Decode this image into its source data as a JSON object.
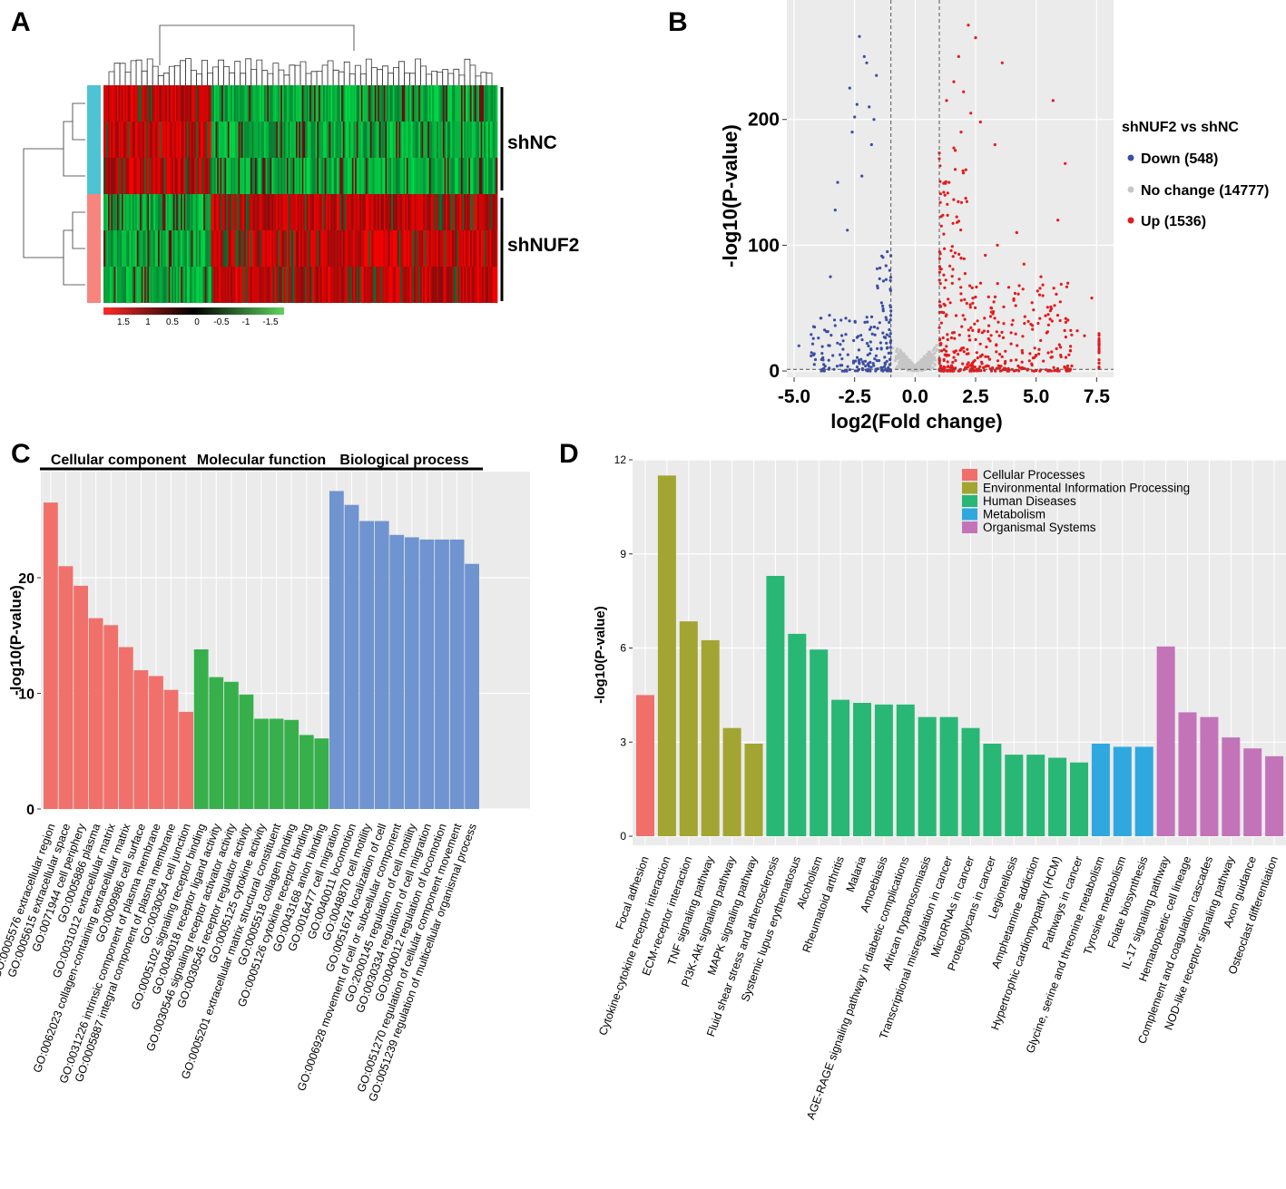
{
  "panels": {
    "a": "A",
    "b": "B",
    "c": "C",
    "d": "D"
  },
  "colors": {
    "down": "#3a4ea4",
    "nochange": "#c6c6c6",
    "up": "#e41a1c",
    "cc": "#f0716b",
    "mf": "#37b04b",
    "bp": "#6f94cf",
    "kegg": [
      "#f06f6a",
      "#a3a532",
      "#29b776",
      "#2fa8df",
      "#c374b9"
    ],
    "heat_pos": "#ff2a2a",
    "heat_neg": "#33cc33",
    "heat_mid": "#000000",
    "shnc_bar": "#4ec3d3",
    "shnuf2_bar": "#f7857e"
  },
  "chart_data": [
    {
      "panel": "A",
      "type": "heatmap",
      "row_groups": [
        "shNC",
        "shNUF2"
      ],
      "colorbar_ticks": [
        "1.5",
        "1",
        "0.5",
        "0",
        "-0.5",
        "-1",
        "-1.5"
      ],
      "rows": 6
    },
    {
      "panel": "B",
      "type": "scatter",
      "title": "",
      "xlabel": "log2(Fold change)",
      "ylabel": "-log10(P-value)",
      "xlim": [
        -5.3,
        8.2
      ],
      "ylim": [
        -5,
        295
      ],
      "xticks": [
        -5.0,
        -2.5,
        0.0,
        2.5,
        5.0,
        7.5
      ],
      "xtick_labels": [
        "-5.0",
        "-2.5",
        "0.0",
        "2.5",
        "5.0",
        "7.5"
      ],
      "yticks": [
        0,
        100,
        200
      ],
      "vlines": [
        -1,
        1
      ],
      "hline": 1.3,
      "legend_title": "shNUF2 vs shNC",
      "legend": [
        "Down (548)",
        "No change (14777)",
        "Up (1536)"
      ],
      "series": [
        {
          "name": "Down",
          "count": 548
        },
        {
          "name": "No change",
          "count": 14777
        },
        {
          "name": "Up",
          "count": 1536
        }
      ],
      "outliers_down": [
        [
          -2.3,
          266
        ],
        [
          -2.1,
          250
        ],
        [
          -2.0,
          245
        ],
        [
          -2.7,
          225
        ],
        [
          -2.4,
          212
        ],
        [
          -1.9,
          210
        ],
        [
          -2.5,
          202
        ],
        [
          -1.7,
          200
        ],
        [
          -1.6,
          235
        ],
        [
          -3.2,
          150
        ],
        [
          -2.2,
          155
        ],
        [
          -3.3,
          128
        ],
        [
          -2.8,
          112
        ],
        [
          -3.5,
          75
        ],
        [
          -3.9,
          42
        ],
        [
          -4.8,
          20
        ],
        [
          -4.3,
          12
        ],
        [
          -2.6,
          190
        ],
        [
          -1.8,
          180
        ]
      ],
      "outliers_up": [
        [
          2.2,
          275
        ],
        [
          2.5,
          265
        ],
        [
          1.8,
          250
        ],
        [
          3.6,
          245
        ],
        [
          1.6,
          230
        ],
        [
          2.0,
          222
        ],
        [
          1.3,
          215
        ],
        [
          5.7,
          215
        ],
        [
          2.3,
          205
        ],
        [
          2.7,
          198
        ],
        [
          1.9,
          190
        ],
        [
          3.3,
          180
        ],
        [
          6.2,
          165
        ],
        [
          2.1,
          160
        ],
        [
          1.4,
          150
        ],
        [
          5.9,
          120
        ],
        [
          4.2,
          110
        ],
        [
          3.4,
          100
        ],
        [
          2.9,
          92
        ],
        [
          4.5,
          85
        ],
        [
          5.2,
          75
        ],
        [
          6.0,
          55
        ],
        [
          7.3,
          58
        ],
        [
          6.7,
          32
        ],
        [
          7.0,
          28
        ],
        [
          5.5,
          45
        ]
      ]
    },
    {
      "panel": "C",
      "type": "bar",
      "ylabel": "-log10(P-value)",
      "ylim": [
        0,
        28
      ],
      "yticks": [
        0,
        10,
        20
      ],
      "groups": [
        {
          "name": "Cellular component",
          "color_key": "cc",
          "categories": [
            "GO:0005576 extracellular region",
            "GO:0005615 extracellular space",
            "GO:0071944 cell periphery",
            "GO:0005886 plasma",
            "GO:0031012 extracellular matrix",
            "GO:0062023 collagen-containing extracellular matrix",
            "GO:0009986 cell surface",
            "GO:0031226 intrinsic component of plasma membrane",
            "GO:0005887 integral component of plasma membrane",
            "GO:0030054 cell junction"
          ],
          "values": [
            26.5,
            21.0,
            19.3,
            16.5,
            15.9,
            14.0,
            12.0,
            11.5,
            10.3,
            8.4
          ]
        },
        {
          "name": "Molecular function",
          "color_key": "mf",
          "categories": [
            "GO:0005102 signaling receptor binding",
            "GO:0048018 receptor ligand activity",
            "GO:0030546 signaling receptor activator activity",
            "GO:0030545 receptor regulator activity",
            "GO:0005125 cytokine activity",
            "GO:0005201 extracellular matrix structural constituent",
            "GO:0005518 collagen binding",
            "GO:0005126 cytokine receptor binding",
            "GO:0043168 anion binding"
          ],
          "values": [
            13.8,
            11.4,
            11.0,
            9.9,
            7.8,
            7.8,
            7.7,
            6.4,
            6.1
          ]
        },
        {
          "name": "Biological process",
          "color_key": "bp",
          "categories": [
            "GO:0016477 cell migration",
            "GO:0040011 locomotion",
            "GO:0048870 cell motility",
            "GO:0051674 localization of cell",
            "GO:0006928 movement of cell or subcellular component",
            "GO:2000145 regulation of cell motility",
            "GO:0030334 regulation of cell migration",
            "GO:0040012 regulation of locomotion",
            "GO:0051270 regulation of cellular component movement",
            "GO:0051239 regulation of multicellular organismal process"
          ],
          "values": [
            27.5,
            26.3,
            24.9,
            24.9,
            23.7,
            23.5,
            23.3,
            23.3,
            23.3,
            21.2
          ]
        }
      ]
    },
    {
      "panel": "D",
      "type": "bar",
      "ylabel": "-log10(P-value)",
      "ylim": [
        0,
        12
      ],
      "yticks": [
        0,
        3,
        6,
        9,
        12
      ],
      "legend": [
        "Cellular Processes",
        "Environmental Information Processing",
        "Human Diseases",
        "Metabolism",
        "Organismal Systems"
      ],
      "categories": [
        "Focal adhesion",
        "Cytokine-cytokine receptor interaction",
        "ECM-receptor interaction",
        "TNF signaling pathway",
        "PI3K-Akt signaling pathway",
        "MAPK signaling pathway",
        "Fluid shear stress and atherosclerosis",
        "Systemic lupus erythematosus",
        "Alcoholism",
        "Rheumatoid arthritis",
        "Malaria",
        "Amoebiasis",
        "AGE-RAGE signaling pathway in diabetic complications",
        "African trypanosomiasis",
        "Transcriptional misregulation in cancer",
        "MicroRNAs in cancer",
        "Proteoglycans in cancer",
        "Legionellosis",
        "Amphetamine addiction",
        "Hypertrophic cardiomyopathy (HCM)",
        "Pathways in cancer",
        "Glycine, serine and threonine metabolism",
        "Tyrosine metabolism",
        "Folate biosynthesis",
        "IL-17 signaling pathway",
        "Hematopoietic cell lineage",
        "Complement and coagulation cascades",
        "NOD-like receptor signaling pathway",
        "Axon guidance",
        "Osteoclast differentiation"
      ],
      "values": [
        4.5,
        11.5,
        6.85,
        6.25,
        3.45,
        2.95,
        8.3,
        6.45,
        5.95,
        4.35,
        4.25,
        4.2,
        4.2,
        3.8,
        3.8,
        3.45,
        2.95,
        2.6,
        2.6,
        2.5,
        2.35,
        2.95,
        2.85,
        2.85,
        6.05,
        3.95,
        3.8,
        3.15,
        2.8,
        2.55
      ],
      "groups": [
        0,
        1,
        1,
        1,
        1,
        1,
        2,
        2,
        2,
        2,
        2,
        2,
        2,
        2,
        2,
        2,
        2,
        2,
        2,
        2,
        2,
        3,
        3,
        3,
        4,
        4,
        4,
        4,
        4,
        4
      ]
    }
  ]
}
